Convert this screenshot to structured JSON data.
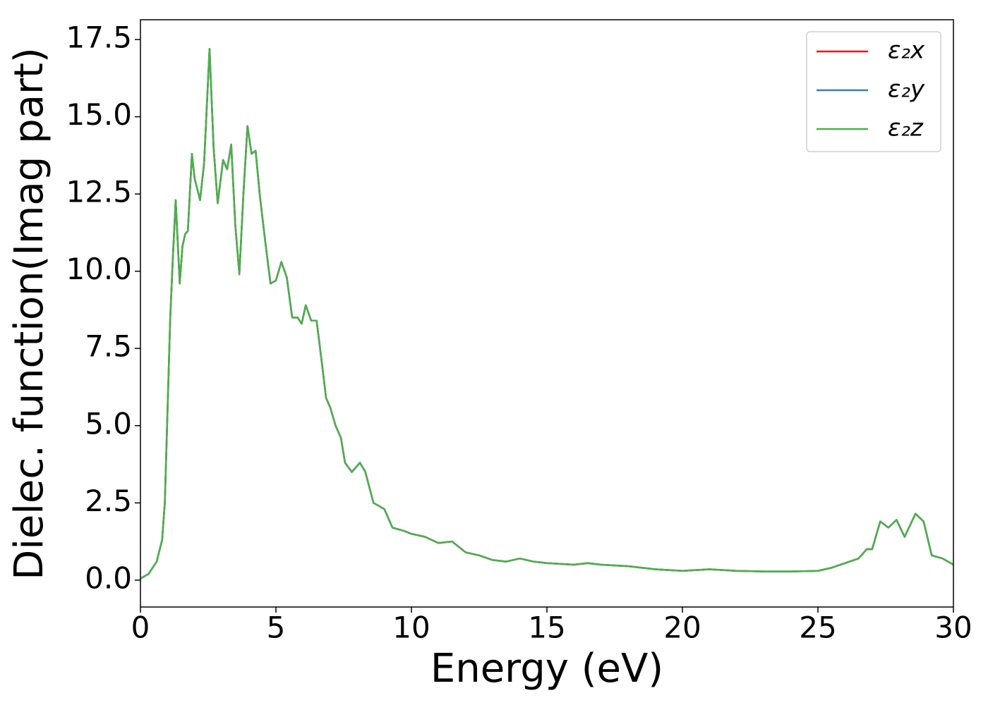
{
  "chart_data": {
    "type": "line",
    "xlabel": "Energy (eV)",
    "ylabel": "Dielec. function(Imag part)",
    "x": [
      0,
      0.3,
      0.6,
      0.8,
      0.9,
      1.0,
      1.1,
      1.2,
      1.3,
      1.4,
      1.45,
      1.55,
      1.65,
      1.75,
      1.9,
      2.0,
      2.2,
      2.35,
      2.55,
      2.7,
      2.85,
      3.05,
      3.2,
      3.35,
      3.5,
      3.65,
      3.8,
      3.95,
      4.1,
      4.25,
      4.4,
      4.6,
      4.8,
      5.0,
      5.2,
      5.4,
      5.6,
      5.8,
      5.95,
      6.1,
      6.3,
      6.5,
      6.7,
      6.85,
      7.0,
      7.2,
      7.4,
      7.55,
      7.8,
      8.1,
      8.3,
      8.6,
      9.0,
      9.3,
      9.7,
      10.0,
      10.5,
      11.0,
      11.5,
      12.0,
      12.5,
      13.0,
      13.5,
      14.0,
      14.5,
      15.0,
      16.0,
      16.5,
      17.0,
      18.0,
      19.0,
      20.0,
      21.0,
      22.0,
      23.0,
      24.0,
      25.0,
      25.5,
      26.0,
      26.5,
      26.8,
      27.0,
      27.3,
      27.6,
      27.9,
      28.2,
      28.6,
      28.9,
      29.2,
      29.6,
      30.0
    ],
    "series": [
      {
        "name": "ε₂x",
        "color": "#e41a1c",
        "values": [
          0.05,
          0.2,
          0.6,
          1.3,
          2.5,
          5.5,
          8.5,
          10.5,
          12.3,
          10.5,
          9.6,
          10.8,
          11.2,
          11.3,
          13.8,
          13.0,
          12.3,
          13.5,
          17.2,
          14.0,
          12.2,
          13.6,
          13.3,
          14.1,
          11.5,
          9.9,
          12.5,
          14.7,
          13.8,
          13.9,
          12.5,
          11.0,
          9.6,
          9.7,
          10.3,
          9.8,
          8.5,
          8.5,
          8.3,
          8.9,
          8.4,
          8.4,
          7.0,
          5.9,
          5.6,
          5.0,
          4.6,
          3.8,
          3.5,
          3.8,
          3.5,
          2.5,
          2.3,
          1.7,
          1.6,
          1.5,
          1.4,
          1.2,
          1.25,
          0.9,
          0.8,
          0.65,
          0.6,
          0.7,
          0.6,
          0.55,
          0.5,
          0.55,
          0.5,
          0.45,
          0.35,
          0.3,
          0.35,
          0.3,
          0.28,
          0.28,
          0.3,
          0.4,
          0.55,
          0.7,
          1.0,
          1.0,
          1.9,
          1.7,
          1.95,
          1.4,
          2.15,
          1.9,
          0.8,
          0.7,
          0.5
        ]
      },
      {
        "name": "ε₂y",
        "color": "#377eb8",
        "values": [
          0.05,
          0.2,
          0.6,
          1.3,
          2.5,
          5.5,
          8.5,
          10.5,
          12.3,
          10.5,
          9.6,
          10.8,
          11.2,
          11.3,
          13.8,
          13.0,
          12.3,
          13.5,
          17.2,
          14.0,
          12.2,
          13.6,
          13.3,
          14.1,
          11.5,
          9.9,
          12.5,
          14.7,
          13.8,
          13.9,
          12.5,
          11.0,
          9.6,
          9.7,
          10.3,
          9.8,
          8.5,
          8.5,
          8.3,
          8.9,
          8.4,
          8.4,
          7.0,
          5.9,
          5.6,
          5.0,
          4.6,
          3.8,
          3.5,
          3.8,
          3.5,
          2.5,
          2.3,
          1.7,
          1.6,
          1.5,
          1.4,
          1.2,
          1.25,
          0.9,
          0.8,
          0.65,
          0.6,
          0.7,
          0.6,
          0.55,
          0.5,
          0.55,
          0.5,
          0.45,
          0.35,
          0.3,
          0.35,
          0.3,
          0.28,
          0.28,
          0.3,
          0.4,
          0.55,
          0.7,
          1.0,
          1.0,
          1.9,
          1.7,
          1.95,
          1.4,
          2.15,
          1.9,
          0.8,
          0.7,
          0.5
        ]
      },
      {
        "name": "ε₂z",
        "color": "#4daf4a",
        "values": [
          0.05,
          0.2,
          0.6,
          1.3,
          2.5,
          5.5,
          8.5,
          10.5,
          12.3,
          10.5,
          9.6,
          10.8,
          11.2,
          11.3,
          13.8,
          13.0,
          12.3,
          13.5,
          17.2,
          14.0,
          12.2,
          13.6,
          13.3,
          14.1,
          11.5,
          9.9,
          12.5,
          14.7,
          13.8,
          13.9,
          12.5,
          11.0,
          9.6,
          9.7,
          10.3,
          9.8,
          8.5,
          8.5,
          8.3,
          8.9,
          8.4,
          8.4,
          7.0,
          5.9,
          5.6,
          5.0,
          4.6,
          3.8,
          3.5,
          3.8,
          3.5,
          2.5,
          2.3,
          1.7,
          1.6,
          1.5,
          1.4,
          1.2,
          1.25,
          0.9,
          0.8,
          0.65,
          0.6,
          0.7,
          0.6,
          0.55,
          0.5,
          0.55,
          0.5,
          0.45,
          0.35,
          0.3,
          0.35,
          0.3,
          0.28,
          0.28,
          0.3,
          0.4,
          0.55,
          0.7,
          1.0,
          1.0,
          1.9,
          1.7,
          1.95,
          1.4,
          2.15,
          1.9,
          0.8,
          0.7,
          0.5
        ]
      }
    ],
    "xlim": [
      0,
      30
    ],
    "xticks": [
      0,
      5,
      10,
      15,
      20,
      25,
      30
    ],
    "ylim": [
      -0.87,
      18.14
    ],
    "yticks": [
      {
        "value": 0,
        "label": "0.0"
      },
      2.5,
      {
        "value": 5,
        "label": "5.0"
      },
      7.5,
      {
        "value": 10,
        "label": "10.0"
      },
      12.5,
      {
        "value": 15,
        "label": "15.0"
      },
      17.5
    ],
    "legend": "upper right"
  }
}
